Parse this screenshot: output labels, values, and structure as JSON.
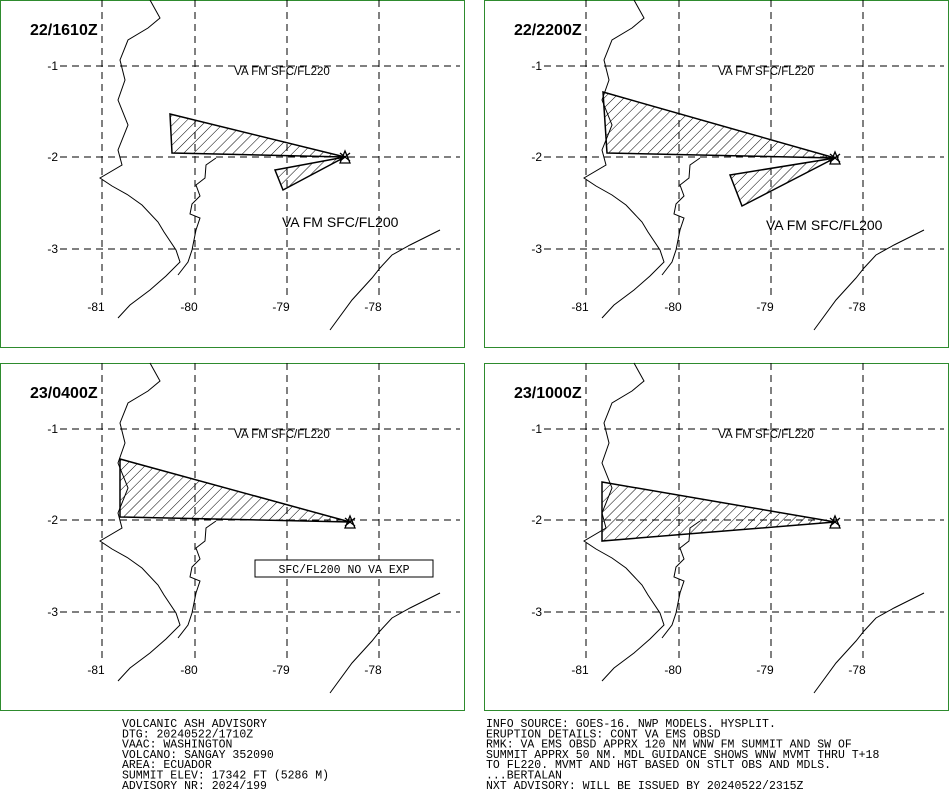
{
  "panels": [
    {
      "time": "22/1610Z",
      "upper_label": "VA FM SFC/FL220",
      "lower_label": "VA FM SFC/FL200"
    },
    {
      "time": "22/2200Z",
      "upper_label": "VA FM SFC/FL220",
      "lower_label": "VA FM SFC/FL200"
    },
    {
      "time": "23/0400Z",
      "upper_label": "VA FM SFC/FL220",
      "boxed_label": "SFC/FL200 NO VA EXP"
    },
    {
      "time": "23/1000Z",
      "upper_label": "VA FM SFC/FL220"
    }
  ],
  "lat_labels": [
    "-1",
    "-2",
    "-3"
  ],
  "lon_labels": [
    "-81",
    "-80",
    "-79",
    "-78"
  ],
  "advisory": {
    "left": [
      "VOLCANIC ASH ADVISORY",
      "DTG: 20240522/1710Z",
      "VAAC: WASHINGTON",
      "VOLCANO: SANGAY 352090",
      "AREA: ECUADOR",
      "SUMMIT ELEV: 17342 FT (5286 M)",
      "ADVISORY NR: 2024/199"
    ],
    "right": [
      "INFO SOURCE: GOES-16. NWP MODELS. HYSPLIT.",
      "ERUPTION DETAILS: CONT VA EMS OBSD",
      "RMK: VA EMS OBSD APPRX 120 NM WNW FM SUMMIT AND SW OF",
      "SUMMIT APPRX 50 NM. MDL GUIDANCE SHOWS WNW MVMT THRU T+18",
      "TO FL220. MVMT AND HGT BASED ON STLT OBS AND MDLS.",
      "...BERTALAN",
      "NXT ADVISORY: WILL BE ISSUED BY 20240522/2315Z"
    ]
  }
}
